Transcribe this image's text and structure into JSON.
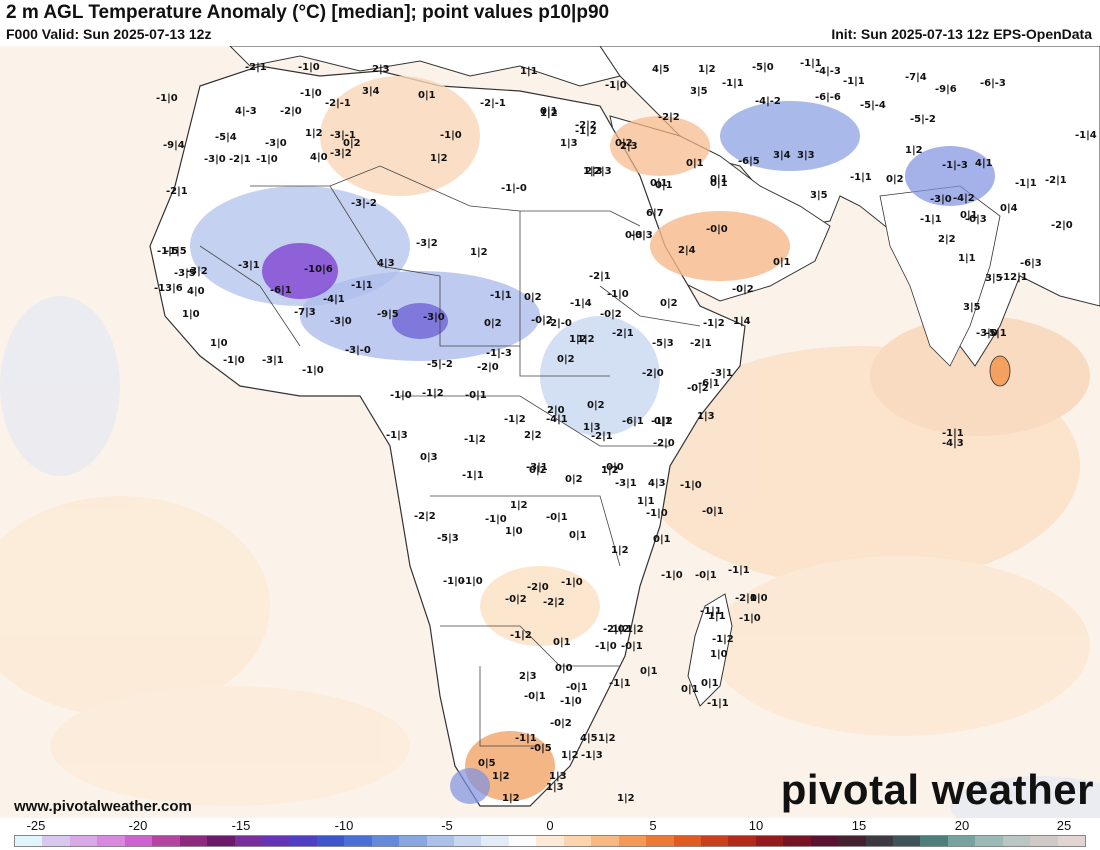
{
  "header": {
    "title": "2 m AGL Temperature Anomaly (°C) [median]; point values p10|p90",
    "valid": "F000 Valid: Sun 2025-07-13 12z",
    "init": "Init: Sun 2025-07-13 12z EPS-OpenData"
  },
  "footer": {
    "website": "www.pivotalweather.com",
    "brand": "pivotal weather"
  },
  "colorbar": {
    "ticks": [
      "-25",
      "-20",
      "-15",
      "-10",
      "-5",
      "0",
      "5",
      "10",
      "15",
      "20",
      "25"
    ],
    "colors": [
      "#dff4fb",
      "#d8c7ee",
      "#d9a8e6",
      "#d889de",
      "#cc63cf",
      "#b3449f",
      "#8e2a7d",
      "#6b1a6a",
      "#7a2e9c",
      "#6533b8",
      "#4f3fc4",
      "#3f55cc",
      "#4a6fd6",
      "#6488da",
      "#88a7e0",
      "#aac2ea",
      "#c8d7f0",
      "#e3ebf7",
      "#fbfbfd",
      "#fde9d6",
      "#fbd3ad",
      "#f8b882",
      "#f39a58",
      "#ea7a35",
      "#de5c22",
      "#c9401d",
      "#b12a1a",
      "#931b1c",
      "#761425",
      "#5a1231",
      "#45202f",
      "#3b3a40",
      "#3e5457",
      "#4d7e7a",
      "#76a39d",
      "#9bbab6",
      "#b8c7c3",
      "#cfcac8",
      "#e2d5d1"
    ]
  },
  "map": {
    "land_color": "#ffffff",
    "ocean_color": "#fbf3ea",
    "anomaly_colors": {
      "cold": "#7d92e0",
      "cool": "#b6c6ee",
      "warm": "#f7c79d",
      "hot": "#f0a366",
      "very_cold": "#7b3bd0"
    },
    "labels": [
      "-2|1",
      "-1|0",
      "2|3",
      "-1|0",
      "-2|-1",
      "3|4",
      "0|1",
      "-2|-1",
      "0|1",
      "-1|0",
      "1|1",
      "4|5",
      "1|2",
      "-5|0",
      "-4|-3",
      "-1|1",
      "-7|4",
      "-9|6",
      "-6|-3",
      "-1|0",
      "4|-3",
      "-2|0",
      "-3|-1",
      "1|2",
      "-1|0",
      "-2|2",
      "0|2",
      "-2|2",
      "3|5",
      "-1|1",
      "-4|-2",
      "-6|-6",
      "-5|-4",
      "-5|-2",
      "-1|4",
      "-5|4",
      "-9|4",
      "-3|0",
      "-2|1",
      "-1|0",
      "-3|0",
      "4|0",
      "0|2",
      "1|2",
      "-1|2",
      "1|3",
      "-3|2",
      "1|2",
      "2|3",
      "1|2",
      "2|3",
      "0|1",
      "0|1",
      "-6|5",
      "3|4",
      "3|3",
      "1|2",
      "-1|-3",
      "4|1",
      "-2|1",
      "-1|-0",
      "0|1",
      "0|1",
      "0|1",
      "3|5",
      "-1|1",
      "0|2",
      "-3|0",
      "-4|2",
      "-1|1",
      "-2|1",
      "-3|-2",
      "2|3",
      "6|7",
      "-0|0",
      "-1|1",
      "-1|1",
      "-0|3",
      "0|4",
      "-2|0",
      "-1|5",
      "-3|2",
      "-3|1",
      "-10|6",
      "4|3",
      "-3|2",
      "1|2",
      "-0|3",
      "2|4",
      "0|1",
      "-0|2",
      "0|3",
      "2|2",
      "0|1",
      "-6|3",
      "-2|1",
      "-1|5",
      "-3|5",
      "1|1",
      "3|5",
      "-12|1",
      "1|0",
      "-13|6",
      "-6|1",
      "-4|1",
      "-1|1",
      "-1|1",
      "0|2",
      "-1|4",
      "-1|0",
      "0|2",
      "-0|2",
      "-1|2",
      "-5|1",
      "-7|3",
      "-9|5",
      "-3|0",
      "0|2",
      "-0|2",
      "-2|-0",
      "1|2",
      "-2|1",
      "1|0",
      "4|0",
      "-3|0",
      "-1|-3",
      "-5|3",
      "-2|0",
      "-2|1",
      "-6|1",
      "1|4",
      "3|5",
      "-3|0",
      "-1|0",
      "-3|1",
      "-1|0",
      "-3|-0",
      "-5|-2",
      "-2|0",
      "0|2",
      "1|2",
      "-1|0",
      "-1|2",
      "-0|1",
      "-4|1",
      "1|3",
      "-6|1",
      "-1|2",
      "-0|2",
      "-3|1",
      "-1|2",
      "2|0",
      "0|2",
      "0|1",
      "1|3",
      "-1|3",
      "-1|2",
      "2|2",
      "-2|1",
      "-1|1",
      "0|2",
      "1|2",
      "0|3",
      "-3|1",
      "0|2",
      "-0|0",
      "-3|1",
      "4|3",
      "-1|0",
      "-2|0",
      "1|1",
      "-0|1",
      "-1|1",
      "-4|3",
      "-2|2",
      "-1|0",
      "-5|3",
      "0|1",
      "1|2",
      "-1|0",
      "1|0",
      "-0|1",
      "1|2",
      "0|1",
      "-1|0",
      "-0|1",
      "-1|1",
      "-2|1",
      "-1|1",
      "-1|0",
      "0|0",
      "-1|0",
      "-1|0",
      "-2|0",
      "-1|0",
      "-0|2",
      "-2|2",
      "-2|0",
      "1|2",
      "1|2",
      "-1|2",
      "0|1",
      "-1|0",
      "-0|1",
      "0|1",
      "1|1",
      "0|0",
      "2|3",
      "-1|1",
      "-0|1",
      "-0|1",
      "-1|0",
      "-1|2",
      "1|0",
      "0|1",
      "0|1",
      "-1|1",
      "-0|2",
      "-1|1",
      "4|5",
      "1|2",
      "-1|3",
      "1|2",
      "0|5",
      "-0|5",
      "1|2",
      "1|3",
      "1|3",
      "1|2",
      "1|2"
    ]
  }
}
